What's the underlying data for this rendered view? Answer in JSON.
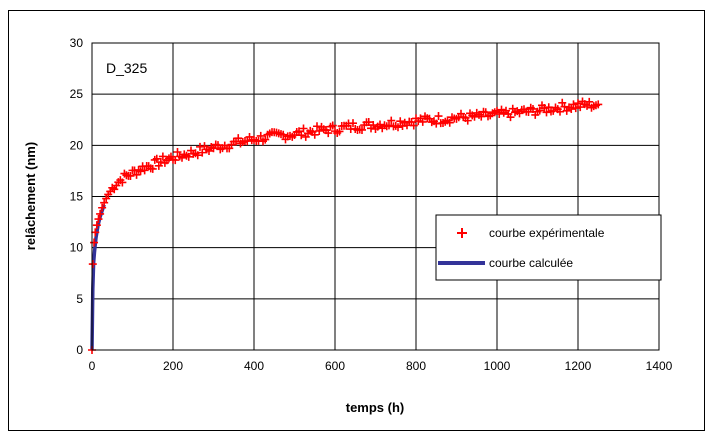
{
  "chart_data": {
    "type": "scatter",
    "annotation": "D_325",
    "xlabel": "temps (h)",
    "ylabel": "relâchement (nm)",
    "xlim": [
      0,
      1400
    ],
    "ylim": [
      0,
      30
    ],
    "xticks": [
      0,
      200,
      400,
      600,
      800,
      1000,
      1200,
      1400
    ],
    "yticks": [
      0,
      5,
      10,
      15,
      20,
      25,
      30
    ],
    "grid": true,
    "legend_placement": "center-right",
    "colors": {
      "experimental": "#ff0000",
      "calculated": "#333399"
    },
    "series": [
      {
        "name": "courbe expérimentale",
        "kind": "scatter",
        "marker": "plus",
        "x": [
          0,
          2,
          5,
          8,
          12,
          16,
          20,
          25,
          30,
          40,
          50,
          60,
          80,
          100,
          125,
          150,
          175,
          200,
          250,
          300,
          350,
          400,
          450,
          500,
          550,
          600,
          650,
          700,
          750,
          800,
          850,
          900,
          950,
          1000,
          1050,
          1100,
          1150,
          1200,
          1250
        ],
        "y": [
          0,
          8.4,
          10.5,
          11.5,
          12.2,
          12.8,
          13.3,
          13.9,
          14.4,
          15.2,
          15.8,
          16.3,
          16.9,
          17.3,
          17.8,
          18.1,
          18.5,
          18.8,
          19.3,
          19.8,
          20.2,
          20.6,
          20.9,
          21.1,
          21.4,
          21.6,
          21.9,
          22.0,
          22.2,
          22.4,
          22.5,
          22.7,
          22.8,
          23.0,
          23.2,
          23.4,
          23.7,
          23.9,
          24.0
        ]
      },
      {
        "name": "courbe calculée",
        "kind": "line",
        "x": [
          0,
          1,
          2,
          4,
          6,
          8,
          10,
          15,
          20,
          30
        ],
        "y": [
          0,
          3,
          6,
          8.5,
          9.5,
          10.3,
          11.0,
          12.2,
          13.0,
          14.2
        ]
      }
    ]
  }
}
